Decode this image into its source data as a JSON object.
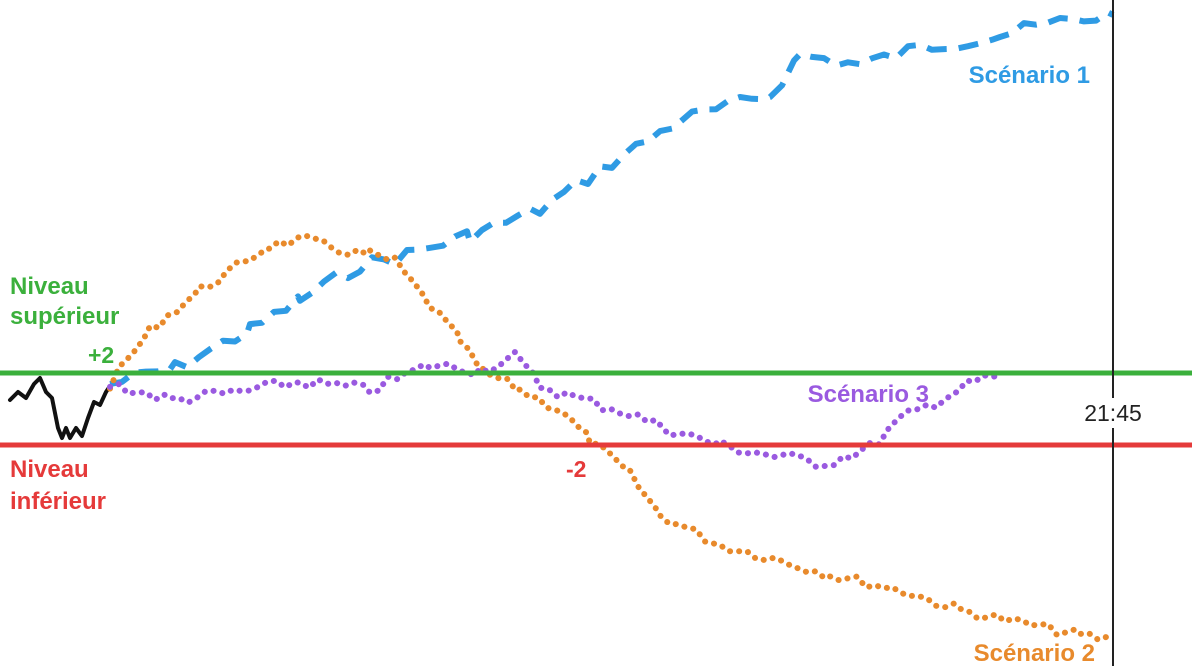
{
  "colors": {
    "upper": "#3bb03c",
    "lower": "#e53a3a",
    "history": "#111111",
    "scenario1": "#2f9be4",
    "scenario2": "#e88a2c",
    "scenario3": "#9a5ae0",
    "time_line": "#222222"
  },
  "labels": {
    "upper_title_1": "Niveau",
    "upper_title_2": "supérieur",
    "upper_delta": "+2",
    "lower_title_1": "Niveau",
    "lower_title_2": "inférieur",
    "lower_delta": "-2",
    "scenario1": "Scénario 1",
    "scenario2": "Scénario 2",
    "scenario3": "Scénario 3",
    "expiry_time": "21:45"
  }
}
